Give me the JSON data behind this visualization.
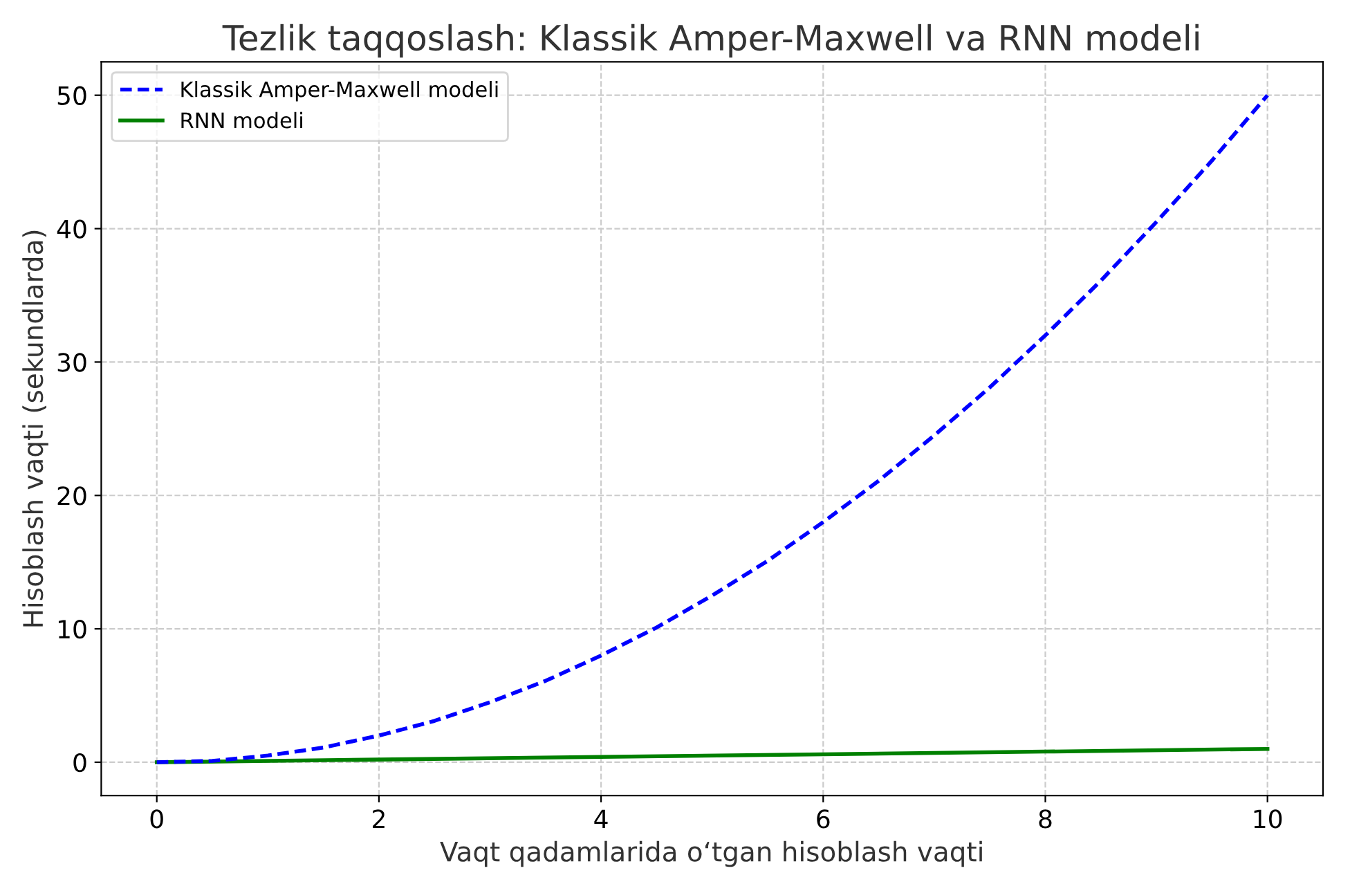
{
  "chart_data": {
    "type": "line",
    "title": "Tezlik taqqoslash: Klassik Amper-Maxwell va RNN modeli",
    "xlabel": "Vaqt qadamlarida o‘tgan hisoblash vaqti",
    "ylabel": "Hisoblash vaqti (sekundlarda)",
    "x": [
      0,
      0.5,
      1,
      1.5,
      2,
      2.5,
      3,
      3.5,
      4,
      4.5,
      5,
      5.5,
      6,
      6.5,
      7,
      7.5,
      8,
      8.5,
      9,
      9.5,
      10
    ],
    "series": [
      {
        "name": "Klassik Amper-Maxwell modeli",
        "color": "#0000ff",
        "line_style": "dashed",
        "values": [
          0,
          0.1,
          0.5,
          1.1,
          2,
          3.1,
          4.5,
          6.1,
          8,
          10.1,
          12.5,
          15.1,
          18,
          21.1,
          24.5,
          28.1,
          32,
          36.1,
          40.5,
          45.1,
          50
        ]
      },
      {
        "name": "RNN modeli",
        "color": "#008000",
        "line_style": "solid",
        "x": [
          0,
          2,
          4,
          6,
          8,
          10
        ],
        "values": [
          0,
          0.2,
          0.4,
          0.6,
          0.8,
          1
        ]
      }
    ],
    "xlim": [
      -0.5,
      10.5
    ],
    "ylim": [
      -2.5,
      52.5
    ],
    "xticks": [
      0,
      2,
      4,
      6,
      8,
      10
    ],
    "yticks": [
      0,
      10,
      20,
      30,
      40,
      50
    ],
    "grid": true,
    "legend": "top left",
    "marker": "none"
  }
}
